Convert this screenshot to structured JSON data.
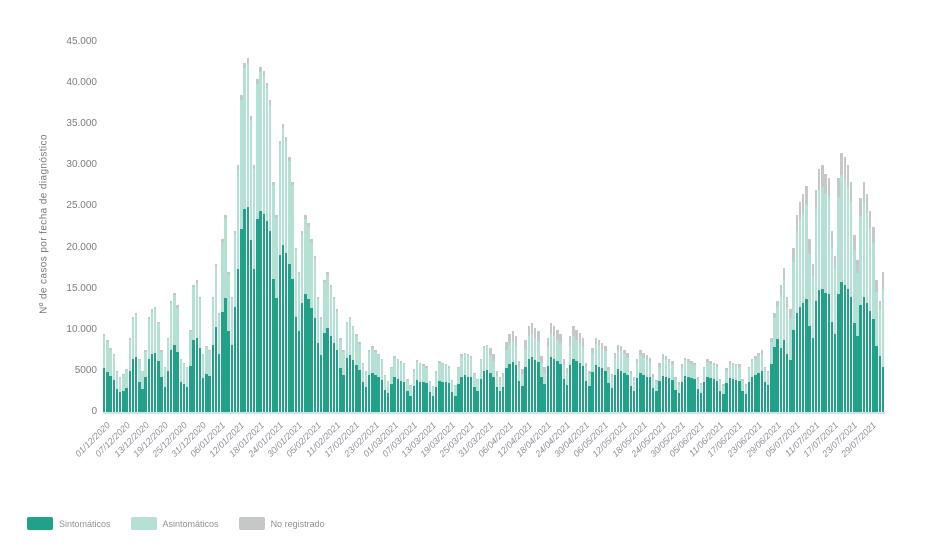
{
  "chart": {
    "y_axis_title": "Nº de casos por fecha de diagnóstico",
    "y_tick_labels": [
      "0",
      "5000",
      "10.000",
      "15.000",
      "20.000",
      "25.000",
      "30.000",
      "35.000",
      "40.000",
      "45.000"
    ],
    "colors": {
      "sintomaticos": "#21a188",
      "asintomaticos": "#b5e1d5",
      "no_registrado": "#c6c8c7",
      "axis_line": "#cfe2ea",
      "tick_text": "#7c7c7c",
      "x_label_text": "#8d9298"
    }
  },
  "chart_data": {
    "type": "bar",
    "stacked": true,
    "title": "",
    "xlabel": "",
    "ylabel": "Nº de casos por fecha de diagnóstico",
    "ylim": [
      0,
      45000
    ],
    "y_tick_step": 5000,
    "grid": false,
    "legend_position": "bottom-left",
    "x_start_date": "01/12/2020",
    "x_frequency": "daily",
    "x_tick_every": 6,
    "x_tick_labels": [
      "01/12/2020",
      "07/12/2020",
      "13/12/2020",
      "19/12/2020",
      "25/12/2020",
      "31/12/2020",
      "06/01/2021",
      "12/01/2021",
      "18/01/2021",
      "24/01/2021",
      "30/01/2021",
      "05/02/2021",
      "11/02/2021",
      "17/02/2021",
      "23/02/2021",
      "01/03/2021",
      "07/03/2021",
      "13/03/2021",
      "19/03/2021",
      "25/03/2021",
      "31/03/2021",
      "06/04/2021",
      "12/04/2021",
      "18/04/2021",
      "24/04/2021",
      "30/04/2021",
      "06/05/2021",
      "12/05/2021",
      "18/05/2021",
      "24/05/2021",
      "30/05/2021",
      "05/06/2021",
      "11/06/2021",
      "17/06/2021",
      "23/06/2021",
      "29/06/2021",
      "05/07/2021",
      "11/07/2021",
      "17/07/2021",
      "23/07/2021",
      "29/07/2021"
    ],
    "series": [
      {
        "name": "Sintomáticos",
        "color": "#21a188",
        "values": [
          5300,
          4900,
          4400,
          3900,
          2800,
          2400,
          2600,
          2900,
          5000,
          6400,
          6700,
          3600,
          2800,
          4200,
          6400,
          7000,
          7200,
          6200,
          4200,
          3100,
          5000,
          7600,
          8100,
          7300,
          3600,
          3400,
          3100,
          5600,
          8700,
          9000,
          7800,
          4100,
          4600,
          4400,
          8100,
          10400,
          7000,
          12200,
          13900,
          9900,
          8100,
          12800,
          17400,
          22300,
          24700,
          24900,
          20900,
          17400,
          23500,
          24400,
          24100,
          23200,
          22000,
          16200,
          13900,
          19100,
          20300,
          19400,
          18000,
          16200,
          11600,
          9900,
          13200,
          14400,
          13800,
          12600,
          11400,
          8400,
          6900,
          9600,
          10200,
          9300,
          8400,
          7500,
          5400,
          4500,
          6600,
          6900,
          6300,
          5700,
          5100,
          3600,
          3000,
          4500,
          4800,
          4500,
          4200,
          3900,
          2700,
          2300,
          3400,
          4200,
          4000,
          3800,
          3700,
          2500,
          2000,
          3200,
          3900,
          3700,
          3600,
          3500,
          2400,
          2000,
          3100,
          3800,
          3700,
          3600,
          3500,
          2400,
          2000,
          3400,
          4300,
          4500,
          4300,
          4200,
          3000,
          2500,
          4000,
          5000,
          5100,
          4800,
          4300,
          3100,
          2600,
          3000,
          5300,
          5900,
          6100,
          5700,
          3800,
          3200,
          5500,
          6500,
          6700,
          6300,
          6100,
          4200,
          3400,
          5600,
          6700,
          6500,
          6200,
          5900,
          4000,
          3300,
          5700,
          6500,
          6200,
          6000,
          5600,
          3800,
          3200,
          4900,
          5700,
          5500,
          5300,
          5000,
          3500,
          2900,
          4500,
          5200,
          5000,
          4800,
          4500,
          3200,
          2600,
          4100,
          4700,
          4500,
          4300,
          4200,
          2900,
          2500,
          3800,
          4400,
          4300,
          4100,
          3900,
          2700,
          2300,
          3700,
          4400,
          4200,
          4100,
          4000,
          2800,
          2300,
          3600,
          4200,
          4100,
          4000,
          3800,
          2600,
          2200,
          3500,
          4100,
          4000,
          3900,
          3800,
          2600,
          2200,
          3600,
          4300,
          4500,
          4800,
          5000,
          3600,
          3300,
          5900,
          7900,
          8900,
          7800,
          8800,
          7000,
          6300,
          10000,
          12000,
          12800,
          13300,
          13800,
          10500,
          9000,
          13500,
          14800,
          15000,
          14500,
          14300,
          11000,
          9500,
          14300,
          15800,
          15500,
          15000,
          14000,
          10800,
          9300,
          13000,
          14000,
          13300,
          12300,
          11300,
          8000,
          6800,
          5500
        ]
      },
      {
        "name": "Asintomáticos",
        "color": "#b5e1d5",
        "values": [
          4000,
          3600,
          3200,
          3000,
          2100,
          1700,
          1900,
          2200,
          3800,
          4900,
          5100,
          2800,
          2100,
          3100,
          4900,
          5200,
          5300,
          4600,
          3100,
          2300,
          3800,
          5600,
          6100,
          5400,
          2800,
          2500,
          2300,
          4200,
          6500,
          6700,
          5900,
          2800,
          3300,
          3000,
          5700,
          7300,
          4800,
          8500,
          9700,
          6800,
          5700,
          8900,
          12100,
          15600,
          17200,
          17500,
          14600,
          12100,
          16400,
          17000,
          16800,
          16200,
          15400,
          11400,
          9700,
          13400,
          14200,
          13600,
          12500,
          11400,
          8100,
          6800,
          8400,
          9100,
          8700,
          8000,
          7200,
          5300,
          4400,
          6100,
          6500,
          5900,
          5300,
          4700,
          3400,
          2800,
          4200,
          4400,
          4000,
          3600,
          3200,
          2300,
          1900,
          2800,
          3000,
          2800,
          2700,
          2500,
          1700,
          1400,
          1900,
          2400,
          2300,
          2200,
          2100,
          1400,
          1200,
          1800,
          2200,
          2100,
          2000,
          1900,
          1300,
          1100,
          1700,
          2200,
          2100,
          2000,
          1900,
          1400,
          1200,
          1900,
          2500,
          2500,
          2500,
          2400,
          1700,
          1400,
          2300,
          2800,
          2900,
          2100,
          1900,
          1300,
          1100,
          1200,
          2200,
          2500,
          2500,
          2400,
          1700,
          1400,
          2200,
          2700,
          2800,
          2700,
          2500,
          1800,
          1400,
          2300,
          2800,
          2700,
          2600,
          2500,
          1700,
          1400,
          2400,
          2700,
          2600,
          2400,
          2300,
          1700,
          1400,
          2300,
          2600,
          2600,
          2400,
          2400,
          1600,
          1300,
          2100,
          2300,
          2400,
          2200,
          2100,
          1400,
          1300,
          1900,
          2200,
          2100,
          2000,
          1900,
          1300,
          1100,
          1700,
          2000,
          2000,
          1900,
          1800,
          1300,
          1000,
          1600,
          1900,
          1900,
          1800,
          1700,
          1200,
          1000,
          1600,
          1900,
          1800,
          1700,
          1700,
          1200,
          1000,
          1500,
          1800,
          1700,
          1700,
          1700,
          1200,
          1000,
          1600,
          1900,
          2000,
          2000,
          2100,
          1600,
          1400,
          2600,
          3500,
          3900,
          6400,
          7200,
          5800,
          5100,
          8300,
          10000,
          10500,
          10900,
          11400,
          8700,
          7500,
          11200,
          12200,
          12400,
          12000,
          11800,
          9100,
          7900,
          11800,
          13000,
          12900,
          12400,
          11600,
          8900,
          7600,
          10800,
          11600,
          10900,
          10100,
          9300,
          6600,
          5600,
          9500
        ]
      },
      {
        "name": "No registrado",
        "color": "#c6c8c7",
        "values": [
          200,
          200,
          200,
          100,
          100,
          100,
          100,
          100,
          200,
          200,
          200,
          100,
          100,
          200,
          200,
          300,
          300,
          200,
          200,
          100,
          200,
          300,
          300,
          300,
          100,
          100,
          100,
          200,
          300,
          300,
          300,
          100,
          100,
          100,
          200,
          300,
          200,
          300,
          400,
          300,
          200,
          300,
          500,
          600,
          600,
          600,
          500,
          500,
          600,
          600,
          600,
          600,
          600,
          400,
          400,
          500,
          500,
          500,
          500,
          400,
          300,
          300,
          400,
          500,
          500,
          400,
          400,
          300,
          200,
          300,
          300,
          300,
          300,
          300,
          200,
          200,
          200,
          200,
          200,
          200,
          200,
          100,
          100,
          200,
          200,
          200,
          100,
          100,
          100,
          100,
          200,
          200,
          200,
          200,
          200,
          100,
          100,
          200,
          200,
          200,
          200,
          200,
          100,
          100,
          200,
          200,
          200,
          200,
          200,
          100,
          100,
          200,
          200,
          200,
          200,
          200,
          100,
          100,
          200,
          200,
          200,
          900,
          800,
          600,
          500,
          600,
          1000,
          1100,
          1200,
          1100,
          700,
          600,
          1100,
          1300,
          1300,
          1200,
          1200,
          800,
          700,
          1100,
          1300,
          1300,
          1200,
          1100,
          800,
          600,
          1100,
          1300,
          1200,
          1200,
          1100,
          500,
          400,
          600,
          700,
          700,
          700,
          600,
          400,
          400,
          600,
          700,
          600,
          600,
          600,
          400,
          300,
          500,
          600,
          600,
          600,
          500,
          400,
          300,
          500,
          600,
          500,
          500,
          500,
          300,
          300,
          500,
          300,
          300,
          300,
          300,
          200,
          200,
          300,
          300,
          300,
          300,
          300,
          200,
          200,
          300,
          300,
          300,
          300,
          300,
          200,
          200,
          300,
          300,
          300,
          400,
          400,
          300,
          300,
          500,
          600,
          700,
          1300,
          1500,
          1200,
          1100,
          1700,
          2000,
          2200,
          2300,
          2300,
          1800,
          1500,
          2300,
          2500,
          2600,
          2500,
          2400,
          1900,
          1600,
          2400,
          2700,
          2600,
          2600,
          2400,
          1800,
          1600,
          2200,
          2400,
          2300,
          2100,
          1900,
          1400,
          1100,
          2000
        ]
      }
    ]
  }
}
